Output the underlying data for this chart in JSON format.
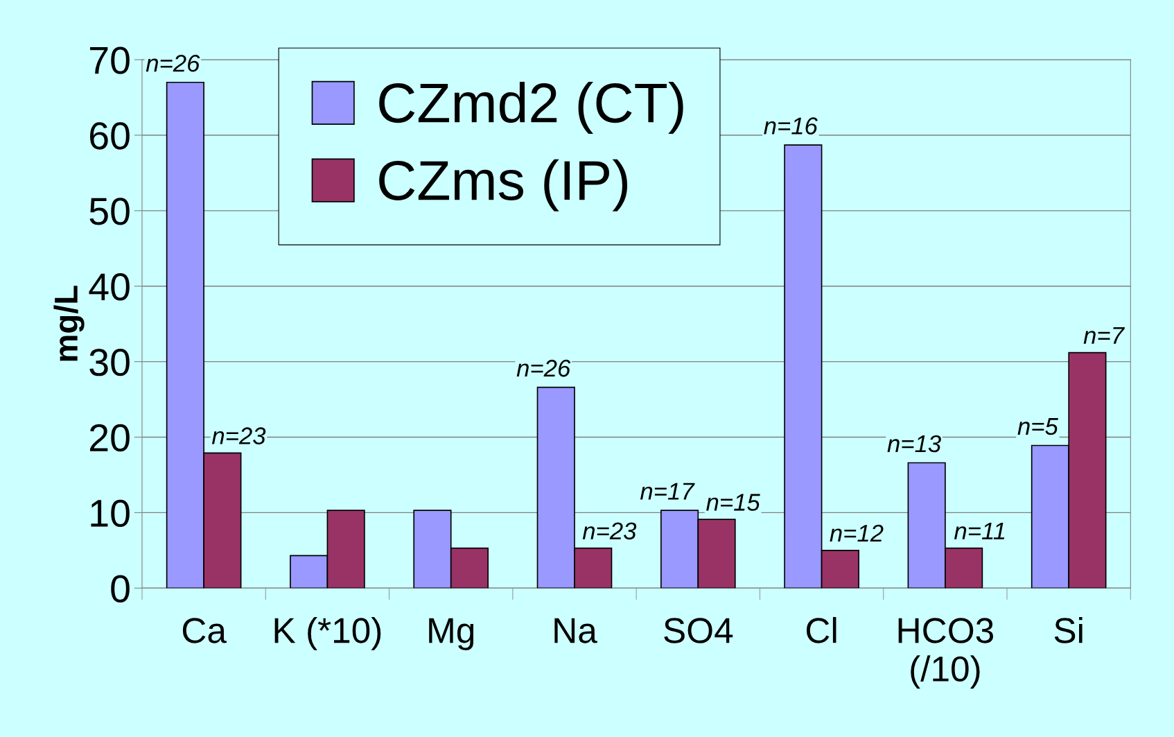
{
  "chart_data": {
    "type": "bar",
    "ylabel": "mg/L",
    "categories": [
      "Ca",
      "K (*10)",
      "Mg",
      "Na",
      "SO4",
      "Cl",
      "HCO3\n(/10)",
      "Si"
    ],
    "series": [
      {
        "name": "CZmd2 (CT)",
        "color": "#9999ff",
        "values": [
          67,
          4.3,
          10.3,
          26.6,
          10.3,
          58.7,
          16.6,
          18.9
        ]
      },
      {
        "name": "CZms (IP)",
        "color": "#993366",
        "values": [
          17.9,
          10.3,
          5.3,
          5.3,
          9.1,
          5.0,
          5.3,
          31.2
        ]
      }
    ],
    "annotations": [
      {
        "text": "n=26",
        "x": "Ca",
        "y": 67
      },
      {
        "text": "n=23",
        "x": "Ca",
        "y": 17.9
      },
      {
        "text": "n=26",
        "x": "Na",
        "y": 26.6
      },
      {
        "text": "n=23",
        "x": "Na",
        "y": 5.3
      },
      {
        "text": "n=17",
        "x": "SO4",
        "y": 10.3
      },
      {
        "text": "n=15",
        "x": "SO4",
        "y": 9.1
      },
      {
        "text": "n=16",
        "x": "Cl",
        "y": 58.7
      },
      {
        "text": "n=12",
        "x": "Cl",
        "y": 5.0
      },
      {
        "text": "n=13",
        "x": "HCO3\n(/10)",
        "y": 16.6
      },
      {
        "text": "n=11",
        "x": "HCO3\n(/10)",
        "y": 5.3
      },
      {
        "text": "n=5",
        "x": "Si",
        "y": 18.9
      },
      {
        "text": "n=7",
        "x": "Si",
        "y": 31.2
      }
    ],
    "ylim": [
      0,
      70
    ],
    "yticks": [
      0,
      10,
      20,
      30,
      40,
      50,
      60,
      70
    ],
    "grid": "y",
    "legend": "top left"
  }
}
